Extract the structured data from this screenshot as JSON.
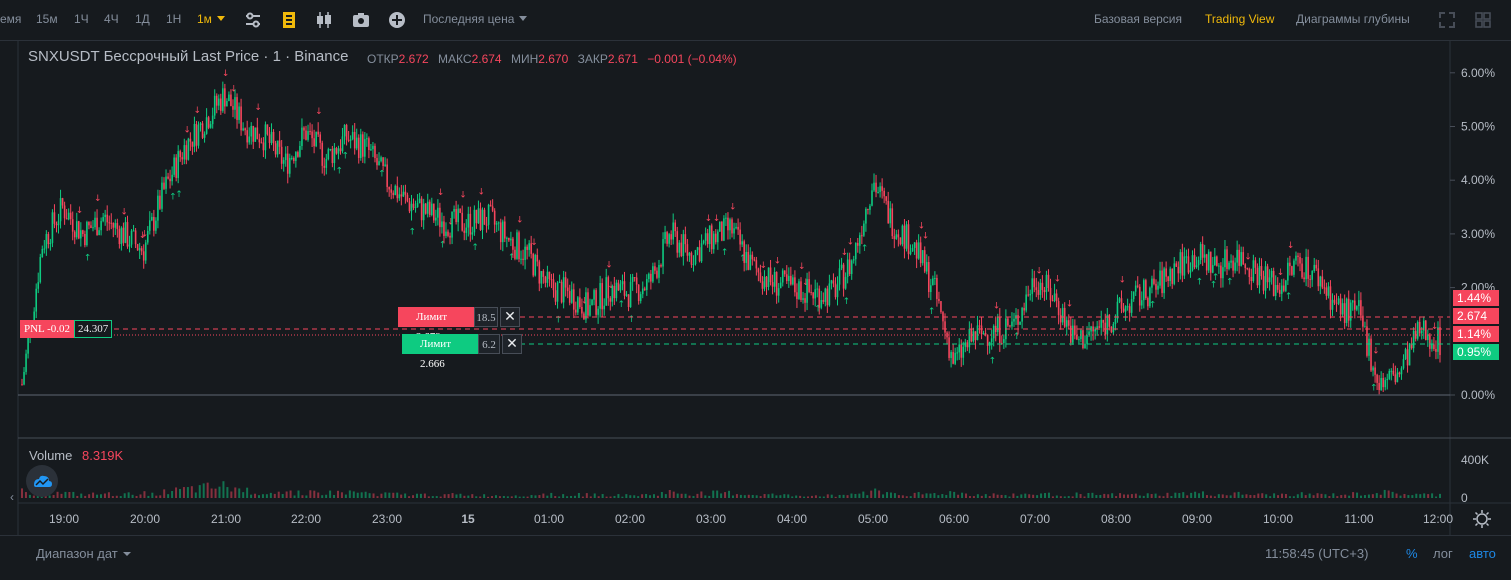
{
  "toolbar": {
    "time_label": "емя",
    "intervals": [
      "15м",
      "1Ч",
      "4Ч",
      "1Д",
      "1Н",
      "1м"
    ],
    "active_interval": "1м",
    "price_type": "Последняя цена",
    "views": [
      "Базовая версия",
      "Trading View",
      "Диаграммы глубины"
    ],
    "active_view": "Trading View"
  },
  "legend": {
    "symbol": "SNXUSDT Бессрочный Last Price · 1 · Binance",
    "open_label": "ОТКР",
    "open": "2.672",
    "high_label": "МАКС",
    "high": "2.674",
    "low_label": "МИН",
    "low": "2.670",
    "close_label": "ЗАКР",
    "close": "2.671",
    "change": "−0.001 (−0.04%)"
  },
  "price_axis": {
    "ticks": [
      "6.00%",
      "5.00%",
      "4.00%",
      "3.00%",
      "2.00%",
      "0.00%"
    ],
    "tick_values": [
      6,
      5,
      4,
      3,
      2,
      0
    ],
    "tags": [
      {
        "text": "1.44%",
        "color": "#f6465d"
      },
      {
        "text": "2.674",
        "color": "#f6465d"
      },
      {
        "text": "1.14%",
        "color": "#f6465d"
      },
      {
        "text": "0.95%",
        "color": "#0ecb81"
      }
    ]
  },
  "orders": [
    {
      "label": "Лимит 2.679",
      "qty": "18.5",
      "color": "#f6465d",
      "level_pct": 1.44
    },
    {
      "label": "Лимит 2.666",
      "qty": "6.2",
      "color": "#0ecb81",
      "level_pct": 0.95
    }
  ],
  "position": {
    "pnl": "PNL -0.02",
    "size": "24.307",
    "level_pct": 1.22
  },
  "volume": {
    "label": "Volume",
    "value": "8.319K",
    "ticks": [
      "400K",
      "0"
    ]
  },
  "time_axis": {
    "labels": [
      "19:00",
      "20:00",
      "21:00",
      "22:00",
      "23:00",
      "15",
      "01:00",
      "02:00",
      "03:00",
      "04:00",
      "05:00",
      "06:00",
      "07:00",
      "08:00",
      "09:00",
      "10:00",
      "11:00",
      "12:00"
    ]
  },
  "footer": {
    "date_range": "Диапазон дат",
    "clock": "11:58:45 (UTC+3)",
    "percent": "%",
    "log": "лог",
    "auto": "авто"
  },
  "colors": {
    "up": "#0ecb81",
    "down": "#f6465d",
    "accent": "#f0b90b",
    "auto": "#1e88e5"
  },
  "chart_data": {
    "type": "line",
    "ylabel": "",
    "ylim": [
      -0.8,
      6.5
    ],
    "x": [
      "18:30",
      "18:45",
      "19:00",
      "19:15",
      "19:30",
      "19:45",
      "20:00",
      "20:15",
      "20:30",
      "20:45",
      "21:00",
      "21:15",
      "21:30",
      "21:45",
      "22:00",
      "22:15",
      "22:30",
      "22:45",
      "23:00",
      "23:15",
      "23:30",
      "23:45",
      "00:00",
      "00:15",
      "00:30",
      "00:45",
      "01:00",
      "01:15",
      "01:30",
      "01:45",
      "02:00",
      "02:15",
      "02:30",
      "02:45",
      "03:00",
      "03:15",
      "03:30",
      "03:45",
      "04:00",
      "04:15",
      "04:30",
      "04:45",
      "05:00",
      "05:15",
      "05:30",
      "05:45",
      "06:00",
      "06:15",
      "06:30",
      "06:45",
      "07:00",
      "07:15",
      "07:30",
      "07:45",
      "08:00",
      "08:15",
      "08:30",
      "08:45",
      "09:00",
      "09:15",
      "09:30",
      "09:45",
      "10:00",
      "10:15",
      "10:30",
      "10:45",
      "11:00",
      "11:15",
      "11:30",
      "11:45",
      "12:00"
    ],
    "series": [
      {
        "values": [
          0.2,
          2.8,
          3.5,
          3.0,
          3.3,
          3.0,
          2.7,
          3.8,
          4.6,
          5.1,
          5.6,
          5.0,
          4.8,
          4.3,
          4.9,
          4.4,
          4.8,
          4.6,
          4.0,
          3.6,
          3.4,
          3.2,
          3.2,
          3.3,
          2.9,
          2.6,
          2.0,
          1.9,
          1.6,
          2.0,
          1.9,
          2.1,
          3.0,
          2.6,
          2.9,
          3.1,
          2.4,
          2.1,
          2.0,
          1.9,
          1.9,
          2.5,
          4.0,
          3.2,
          2.8,
          2.0,
          0.6,
          1.1,
          1.2,
          1.3,
          2.2,
          1.8,
          1.0,
          1.2,
          1.5,
          1.8,
          2.0,
          2.4,
          2.6,
          2.4,
          2.6,
          2.3,
          2.0,
          2.5,
          2.2,
          1.6,
          1.5,
          0.2,
          0.4,
          1.2,
          1.0
        ]
      }
    ],
    "volume_ylim": [
      0,
      400
    ],
    "volume_pct_of_max": [
      0.55,
      0.25,
      0.3,
      0.2,
      0.25,
      0.2,
      0.3,
      0.35,
      0.5,
      0.6,
      0.7,
      0.45,
      0.4,
      0.35,
      0.4,
      0.3,
      0.35,
      0.3,
      0.25,
      0.2,
      0.2,
      0.2,
      0.2,
      0.15,
      0.15,
      0.2,
      0.25,
      0.2,
      0.2,
      0.2,
      0.15,
      0.2,
      0.35,
      0.25,
      0.3,
      0.3,
      0.2,
      0.2,
      0.15,
      0.15,
      0.15,
      0.25,
      0.45,
      0.3,
      0.25,
      0.25,
      0.35,
      0.2,
      0.2,
      0.2,
      0.25,
      0.2,
      0.25,
      0.2,
      0.2,
      0.2,
      0.2,
      0.25,
      0.3,
      0.2,
      0.25,
      0.2,
      0.2,
      0.25,
      0.2,
      0.2,
      0.25,
      0.35,
      0.25,
      0.2,
      0.2
    ]
  }
}
